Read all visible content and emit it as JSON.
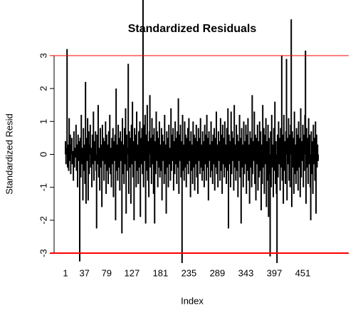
{
  "chart_data": {
    "type": "spike",
    "title": "Standardized Residuals",
    "x_label": "Index",
    "y_label": "Standardized Resid",
    "xlim": [
      1,
      480
    ],
    "ylim": [
      -3.3,
      3.3
    ],
    "xticks": [
      1,
      37,
      79,
      127,
      181,
      235,
      289,
      343,
      397,
      451
    ],
    "yticks": [
      -3,
      -2,
      -1,
      0,
      1,
      2,
      3
    ],
    "color": "#000000",
    "hlines": [
      {
        "value": 3,
        "color": "#ff0000"
      },
      {
        "value": -3,
        "color": "#ff0000"
      }
    ],
    "values": [
      0.4,
      -0.3,
      0.2,
      3.2,
      -0.4,
      0.3,
      -0.5,
      1.1,
      -0.2,
      0.6,
      -0.6,
      0.3,
      0.5,
      -0.3,
      0.1,
      -0.8,
      0.7,
      -0.4,
      0.2,
      -0.1,
      0.9,
      -0.5,
      0.3,
      -1.0,
      0.6,
      -0.2,
      0.4,
      -3.25,
      0.5,
      -0.7,
      1.2,
      -0.3,
      0.2,
      -1.4,
      0.8,
      -0.5,
      0.3,
      -0.9,
      2.2,
      -1.5,
      0.5,
      -0.2,
      1.1,
      -1.4,
      0.7,
      -0.6,
      0.3,
      0.9,
      -0.4,
      0.2,
      -1.0,
      0.6,
      -0.3,
      1.3,
      -0.8,
      0.4,
      -0.2,
      0.7,
      -0.5,
      -2.25,
      0.6,
      -0.3,
      1.5,
      -0.7,
      0.2,
      -1.1,
      0.8,
      -0.4,
      0.3,
      -1.6,
      0.9,
      -0.2,
      0.5,
      -0.8,
      0.4,
      -0.3,
      1.0,
      -1.2,
      0.6,
      -0.5,
      0.3,
      -0.9,
      0.7,
      -0.4,
      1.2,
      -0.6,
      0.2,
      -1.0,
      0.5,
      -0.3,
      0.8,
      -1.3,
      0.4,
      -0.2,
      0.6,
      -2.0,
      2.0,
      -0.5,
      0.3,
      -0.8,
      0.9,
      -0.4,
      0.5,
      -1.1,
      0.7,
      -0.2,
      0.4,
      -2.4,
      1.1,
      -0.6,
      0.3,
      -0.9,
      0.8,
      -0.3,
      1.4,
      -1.8,
      0.6,
      -0.5,
      0.2,
      2.75,
      -1.2,
      0.7,
      -0.4,
      0.5,
      -1.5,
      0.9,
      -0.3,
      1.6,
      -0.7,
      0.4,
      -2.0,
      0.8,
      -0.2,
      0.6,
      -1.0,
      1.3,
      -0.5,
      0.3,
      -0.9,
      0.7,
      -0.4,
      1.0,
      -1.9,
      0.5,
      -0.3,
      0.8,
      -0.6,
      4.7,
      -1.0,
      0.9,
      -0.2,
      1.2,
      -2.1,
      0.6,
      -0.5,
      1.5,
      -0.8,
      0.4,
      -1.3,
      0.7,
      1.8,
      -0.4,
      0.5,
      -0.9,
      1.1,
      -0.3,
      0.6,
      -1.2,
      0.8,
      -2.1,
      0.4,
      -0.6,
      1.3,
      -0.2,
      0.7,
      -1.0,
      0.5,
      -0.4,
      1.0,
      -0.7,
      0.3,
      -0.5,
      0.8,
      -1.4,
      0.6,
      -0.2,
      0.4,
      -0.9,
      1.2,
      -0.6,
      0.3,
      -1.8,
      0.7,
      -0.4,
      0.5,
      -1.0,
      0.9,
      -0.3,
      0.2,
      -0.8,
      1.4,
      -0.5,
      0.6,
      -0.2,
      0.8,
      -1.1,
      0.4,
      -0.6,
      1.0,
      -0.3,
      0.5,
      -0.9,
      0.7,
      -0.4,
      1.7,
      -1.2,
      0.6,
      -0.2,
      0.9,
      -0.7,
      0.4,
      -3.3,
      1.2,
      -0.5,
      0.3,
      -0.8,
      1.0,
      -0.4,
      0.6,
      -1.0,
      0.5,
      -0.3,
      0.8,
      -0.6,
      1.1,
      -0.2,
      0.4,
      -1.3,
      0.7,
      -0.5,
      0.3,
      -0.9,
      1.0,
      -0.4,
      0.6,
      -1.1,
      0.5,
      -0.3,
      0.9,
      -0.7,
      0.4,
      -1.2,
      0.8,
      -0.2,
      0.5,
      -0.6,
      1.1,
      -0.4,
      0.3,
      -0.8,
      0.7,
      -0.5,
      0.4,
      -1.0,
      0.9,
      -0.3,
      0.6,
      -0.8,
      1.2,
      -0.4,
      0.5,
      -1.4,
      0.7,
      -0.2,
      0.3,
      -0.7,
      1.0,
      -0.5,
      0.4,
      -0.9,
      0.6,
      -0.3,
      0.8,
      -1.1,
      0.5,
      -0.4,
      1.3,
      -0.6,
      0.3,
      -1.0,
      0.7,
      -0.2,
      0.4,
      -0.8,
      1.1,
      -0.5,
      0.6,
      -1.2,
      0.9,
      -0.3,
      0.5,
      -0.7,
      1.0,
      -0.4,
      0.3,
      -0.9,
      0.8,
      -0.5,
      1.4,
      -2.25,
      0.6,
      -0.3,
      0.4,
      -1.0,
      1.3,
      -0.6,
      0.7,
      -0.2,
      0.5,
      -1.1,
      1.5,
      -0.4,
      0.3,
      -0.8,
      0.9,
      -0.5,
      0.6,
      -1.3,
      0.4,
      -0.2,
      1.2,
      -0.7,
      0.5,
      -2.1,
      0.8,
      -0.4,
      0.3,
      -1.0,
      1.0,
      -0.6,
      0.4,
      -0.3,
      0.9,
      -1.2,
      0.6,
      -0.5,
      1.1,
      -0.8,
      0.3,
      -1.5,
      0.7,
      -0.4,
      0.5,
      -1.0,
      1.8,
      -0.6,
      0.4,
      -0.2,
      1.3,
      -0.9,
      0.6,
      -1.4,
      0.5,
      -0.3,
      0.9,
      -1.1,
      0.4,
      -0.7,
      1.0,
      -0.5,
      0.7,
      -1.7,
      0.3,
      -0.9,
      1.5,
      -0.4,
      0.8,
      -1.2,
      0.6,
      -0.3,
      1.1,
      -1.6,
      0.4,
      -0.8,
      0.9,
      -1.9,
      0.5,
      -0.6,
      -3.1,
      0.7,
      -1.0,
      1.2,
      -0.4,
      0.3,
      -1.3,
      0.8,
      -0.5,
      1.6,
      -0.9,
      0.4,
      -1.2,
      -3.3,
      0.6,
      -0.7,
      1.0,
      -0.3,
      0.5,
      -1.1,
      0.8,
      -0.4,
      3.0,
      -0.8,
      0.6,
      -1.5,
      1.2,
      -0.5,
      0.4,
      -0.9,
      0.7,
      2.9,
      -1.4,
      0.5,
      -0.3,
      1.1,
      -0.8,
      0.6,
      -1.0,
      0.9,
      4.1,
      -1.6,
      0.7,
      -0.4,
      0.5,
      -1.2,
      1.3,
      -0.6,
      0.3,
      -0.9,
      0.8,
      -0.5,
      0.6,
      -1.1,
      1.0,
      -0.4,
      0.5,
      -1.3,
      1.4,
      -0.7,
      0.4,
      -0.2,
      0.9,
      -1.0,
      0.6,
      -0.5,
      1.2,
      3.15,
      -1.5,
      0.8,
      -0.4,
      0.5,
      -0.9,
      1.1,
      -0.3,
      0.6,
      -1.0,
      -2.0,
      0.7,
      -0.6,
      0.4,
      -1.2,
      0.9,
      -0.3,
      0.5,
      -0.8,
      1.0,
      -1.8,
      0.6,
      -0.4,
      0.3,
      -0.2
    ]
  }
}
